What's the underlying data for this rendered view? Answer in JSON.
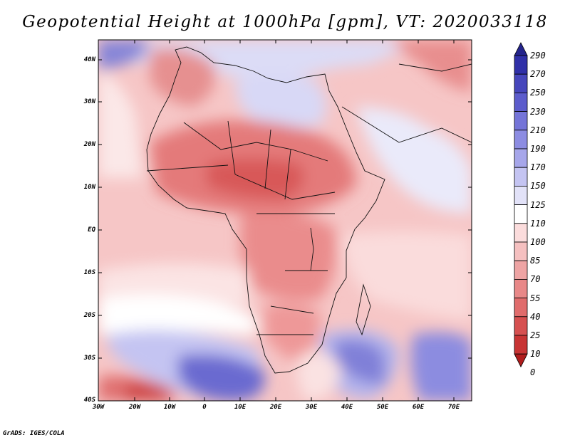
{
  "map": {
    "title": "Geopotential Height at 1000hPa [gpm], VT: 2020033118",
    "variable": "Geopotential Height at 1000hPa",
    "units": "gpm",
    "valid_time": "2020033118",
    "region": "Africa",
    "lat_labels": [
      "40N",
      "30N",
      "20N",
      "10N",
      "EQ",
      "10S",
      "20S",
      "30S",
      "40S"
    ],
    "lon_labels": [
      "30W",
      "20W",
      "10W",
      "0",
      "10E",
      "20E",
      "30E",
      "40E",
      "50E",
      "60E",
      "70E"
    ],
    "lat_range": [
      -40,
      45
    ],
    "lon_range": [
      -30,
      77
    ],
    "colorbar": {
      "levels": [
        "290",
        "270",
        "250",
        "230",
        "210",
        "190",
        "170",
        "150",
        "125",
        "110",
        "100",
        "85",
        "70",
        "55",
        "40",
        "25",
        "10",
        "0"
      ],
      "colors": [
        "#24248c",
        "#3030a8",
        "#4646bc",
        "#5c5ccc",
        "#7474d8",
        "#8c8ce2",
        "#a6a6ea",
        "#c4c4f2",
        "#e2e2f8",
        "#ffffff",
        "#fbdcdc",
        "#f5c0c0",
        "#eea4a4",
        "#e88888",
        "#e06c6c",
        "#d65050",
        "#c83434",
        "#b01c1c"
      ]
    },
    "credit": "GrADS: IGES/COLA"
  }
}
